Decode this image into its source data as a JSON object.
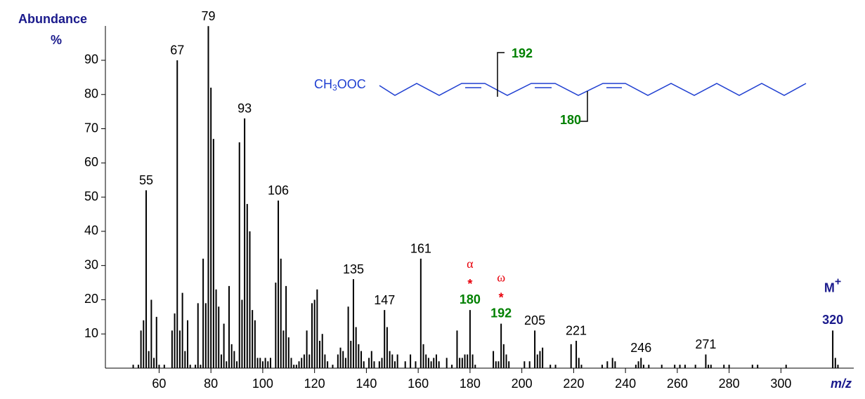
{
  "chart_data": {
    "type": "bar",
    "y_label": "Abundance",
    "y_unit": "%",
    "x_label": "m/z",
    "color": "#000000",
    "xlim": [
      39,
      328
    ],
    "ylim": [
      0,
      100
    ],
    "xticks": [
      60,
      80,
      100,
      120,
      140,
      160,
      180,
      200,
      220,
      240,
      260,
      280,
      300
    ],
    "yticks": [
      10,
      20,
      30,
      40,
      50,
      60,
      70,
      80,
      90
    ],
    "x": [
      50,
      52,
      53,
      54,
      55,
      56,
      57,
      58,
      59,
      60,
      62,
      65,
      66,
      67,
      68,
      69,
      70,
      71,
      72,
      74,
      75,
      76,
      77,
      78,
      79,
      80,
      81,
      82,
      83,
      84,
      85,
      86,
      87,
      88,
      89,
      90,
      91,
      92,
      93,
      94,
      95,
      96,
      97,
      98,
      99,
      100,
      101,
      102,
      103,
      105,
      106,
      107,
      108,
      109,
      110,
      111,
      112,
      113,
      114,
      115,
      116,
      117,
      118,
      119,
      120,
      121,
      122,
      123,
      124,
      125,
      127,
      129,
      130,
      131,
      132,
      133,
      134,
      135,
      136,
      137,
      138,
      139,
      141,
      142,
      143,
      145,
      146,
      147,
      148,
      149,
      150,
      151,
      152,
      155,
      157,
      159,
      161,
      162,
      163,
      164,
      165,
      166,
      167,
      168,
      171,
      173,
      175,
      176,
      177,
      178,
      179,
      180,
      181,
      182,
      189,
      190,
      191,
      192,
      193,
      194,
      195,
      201,
      203,
      205,
      206,
      207,
      208,
      211,
      213,
      219,
      221,
      222,
      223,
      231,
      233,
      235,
      236,
      244,
      245,
      246,
      247,
      249,
      254,
      259,
      261,
      263,
      267,
      271,
      272,
      273,
      278,
      280,
      289,
      291,
      302,
      320,
      321,
      322
    ],
    "values": [
      1,
      1,
      11,
      14,
      52,
      5,
      20,
      3,
      15,
      1,
      1,
      11,
      16,
      90,
      11,
      22,
      5,
      14,
      1,
      1,
      19,
      1,
      32,
      19,
      100,
      82,
      67,
      23,
      18,
      4,
      13,
      2,
      24,
      7,
      5,
      2,
      66,
      20,
      73,
      48,
      40,
      17,
      14,
      3,
      3,
      2,
      3,
      2,
      3,
      25,
      49,
      32,
      11,
      24,
      9,
      3,
      1,
      1,
      2,
      3,
      4,
      11,
      4,
      19,
      20,
      23,
      8,
      10,
      4,
      2,
      1,
      4,
      6,
      5,
      3,
      18,
      8,
      26,
      12,
      7,
      5,
      2,
      3,
      5,
      2,
      2,
      3,
      17,
      12,
      5,
      4,
      2,
      4,
      2,
      4,
      2,
      32,
      7,
      4,
      3,
      2,
      3,
      4,
      2,
      3,
      1,
      11,
      3,
      3,
      4,
      4,
      17,
      4,
      1,
      5,
      2,
      2,
      13,
      7,
      4,
      2,
      2,
      2,
      11,
      4,
      5,
      6,
      1,
      1,
      7,
      8,
      3,
      1,
      1,
      2,
      3,
      2,
      1,
      2,
      3,
      1,
      1,
      1,
      1,
      1,
      1,
      1,
      4,
      1,
      1,
      1,
      1,
      1,
      1,
      1,
      11,
      3,
      1
    ],
    "labeled_peaks": [
      55,
      67,
      79,
      93,
      106,
      135,
      147,
      161,
      205,
      221,
      246,
      271
    ],
    "marker": "*",
    "fragments": [
      {
        "mz": 180,
        "label": "α"
      },
      {
        "mz": 192,
        "label": "ω"
      }
    ],
    "fragment_color": "#008000",
    "marker_color": "#e8000b",
    "molecular_ion": {
      "mz": 320,
      "label": "M",
      "superscript": "+"
    },
    "structure_formula": [
      "CH",
      "3",
      "OOC"
    ]
  }
}
